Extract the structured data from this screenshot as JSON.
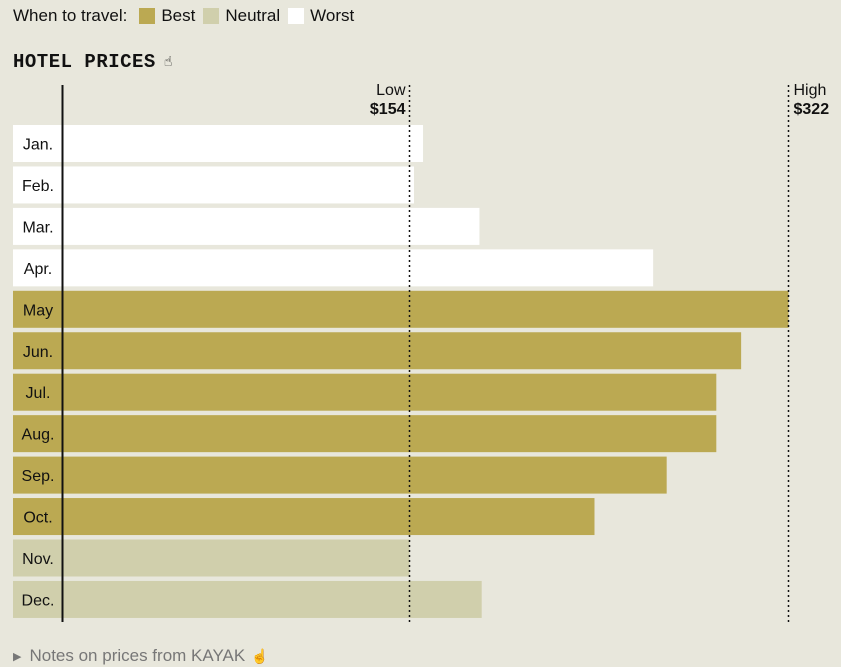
{
  "legend": {
    "label": "When to travel:",
    "items": [
      {
        "label": "Best",
        "color": "#bba952"
      },
      {
        "label": "Neutral",
        "color": "#d0cfac"
      },
      {
        "label": "Worst",
        "color": "#ffffff"
      }
    ]
  },
  "title": "HOTEL PRICES",
  "footer": "Notes on prices from KAYAK",
  "icons": {
    "title": "pointer-hand-icon",
    "footer": "pointer-hand-icon",
    "footer_toggle": "triangle-right-icon"
  },
  "chart_data": {
    "type": "bar",
    "orientation": "horizontal",
    "categories": [
      "Jan.",
      "Feb.",
      "Mar.",
      "Apr.",
      "May",
      "Jun.",
      "Jul.",
      "Aug.",
      "Sep.",
      "Oct.",
      "Nov.",
      "Dec."
    ],
    "values": [
      160,
      156,
      185,
      262,
      322,
      301,
      290,
      290,
      268,
      236,
      154,
      186
    ],
    "category_type": [
      "Worst",
      "Worst",
      "Worst",
      "Worst",
      "Best",
      "Best",
      "Best",
      "Best",
      "Best",
      "Best",
      "Neutral",
      "Neutral"
    ],
    "colors": {
      "Best": "#bba952",
      "Neutral": "#d0cfac",
      "Worst": "#ffffff"
    },
    "reference_lines": [
      {
        "label": "Low",
        "value_label": "$154",
        "value": 154
      },
      {
        "label": "High",
        "value_label": "$322",
        "value": 322
      }
    ],
    "title": "HOTEL PRICES"
  }
}
